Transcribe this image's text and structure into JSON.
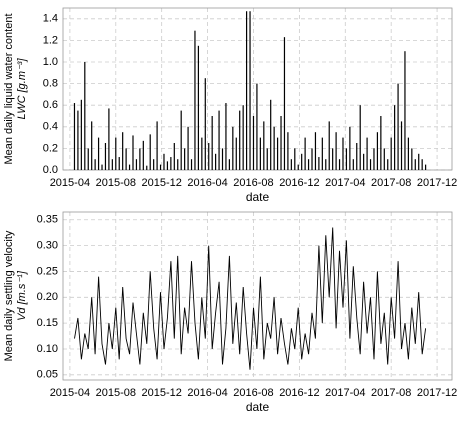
{
  "chart_data": [
    {
      "type": "bar",
      "xlabel": "date",
      "ylabel": [
        "Mean daily liquid water content",
        "LWC [g.m⁻³]"
      ],
      "color": "#000000",
      "grid": true,
      "x": [
        3.4,
        3.7,
        4.0,
        4.3,
        4.6,
        4.9,
        5.2,
        5.5,
        5.8,
        6.1,
        6.4,
        6.7,
        7.0,
        7.3,
        7.6,
        7.9,
        8.2,
        8.5,
        8.8,
        9.1,
        9.4,
        9.7,
        10.0,
        10.3,
        10.6,
        10.9,
        11.2,
        11.5,
        11.8,
        12.1,
        12.4,
        12.7,
        13.0,
        13.3,
        13.6,
        13.9,
        14.2,
        14.5,
        14.8,
        15.1,
        15.4,
        15.7,
        16.0,
        16.3,
        16.6,
        16.9,
        17.2,
        17.5,
        17.8,
        18.1,
        18.4,
        18.7,
        19.0,
        19.3,
        19.6,
        19.9,
        20.2,
        20.5,
        20.8,
        21.1,
        21.4,
        21.7,
        22.0,
        22.3,
        22.6,
        22.9,
        23.2,
        23.5,
        23.8,
        24.1,
        24.4,
        24.7,
        25.0,
        25.3,
        25.6,
        25.9,
        26.2,
        26.5,
        26.8,
        27.1,
        27.4,
        27.7,
        28.0,
        28.3,
        28.6,
        28.9,
        29.2,
        29.5,
        29.8,
        30.1,
        30.4,
        30.7,
        31.0,
        31.3,
        31.6,
        31.9,
        32.2,
        32.5,
        32.8,
        33.1,
        33.4,
        33.7,
        34.0
      ],
      "values": [
        0.62,
        0.55,
        0.65,
        1.0,
        0.2,
        0.45,
        0.1,
        0.3,
        0.05,
        0.25,
        0.57,
        0.1,
        0.3,
        0.12,
        0.35,
        0.2,
        0.05,
        0.32,
        0.1,
        0.2,
        0.27,
        0.04,
        0.33,
        0.1,
        0.45,
        0.05,
        0.15,
        0.08,
        0.12,
        0.25,
        0.1,
        0.55,
        0.2,
        0.4,
        0.1,
        1.29,
        1.15,
        0.3,
        0.85,
        0.25,
        0.5,
        0.15,
        0.55,
        0.2,
        0.62,
        0.1,
        0.4,
        0.3,
        0.55,
        0.6,
        1.47,
        1.47,
        0.5,
        0.8,
        0.3,
        0.45,
        0.2,
        0.65,
        0.4,
        0.3,
        0.5,
        1.23,
        0.35,
        0.1,
        0.2,
        0.05,
        0.15,
        0.3,
        0.1,
        0.2,
        0.35,
        0.12,
        0.3,
        0.1,
        0.45,
        0.2,
        0.35,
        0.1,
        0.3,
        0.2,
        0.4,
        0.1,
        0.25,
        0.6,
        0.15,
        0.3,
        0.1,
        0.2,
        0.35,
        0.5,
        0.2,
        0.1,
        0.3,
        0.6,
        0.8,
        0.45,
        1.1,
        0.3,
        0.2,
        0.1,
        0.15,
        0.1,
        0.05
      ],
      "xlim": [
        2.4,
        36.3
      ],
      "xticks": [
        {
          "value": 3,
          "label": "2015-04"
        },
        {
          "value": 7,
          "label": "2015-08"
        },
        {
          "value": 11,
          "label": "2015-12"
        },
        {
          "value": 15,
          "label": "2016-04"
        },
        {
          "value": 19,
          "label": "2016-08"
        },
        {
          "value": 23,
          "label": "2016-12"
        },
        {
          "value": 27,
          "label": "2017-04"
        },
        {
          "value": 31,
          "label": "2017-08"
        },
        {
          "value": 35,
          "label": "2017-12"
        }
      ],
      "ylim": [
        0,
        1.5
      ],
      "yticks": [
        {
          "value": 0,
          "label": "0.0"
        },
        0.2,
        0.4,
        0.6,
        0.8,
        {
          "value": 1,
          "label": "1.0"
        },
        1.2,
        1.4
      ]
    },
    {
      "type": "line",
      "xlabel": "date",
      "ylabel": [
        "Mean daily settling velocity",
        "Vd [m.s⁻¹]"
      ],
      "color": "#000000",
      "grid": true,
      "x": [
        3.4,
        3.7,
        4.0,
        4.3,
        4.6,
        4.9,
        5.2,
        5.5,
        5.8,
        6.1,
        6.4,
        6.7,
        7.0,
        7.3,
        7.6,
        7.9,
        8.2,
        8.5,
        8.8,
        9.1,
        9.4,
        9.7,
        10.0,
        10.3,
        10.6,
        10.9,
        11.2,
        11.5,
        11.8,
        12.1,
        12.4,
        12.7,
        13.0,
        13.3,
        13.6,
        13.9,
        14.2,
        14.5,
        14.8,
        15.1,
        15.4,
        15.7,
        16.0,
        16.3,
        16.6,
        16.9,
        17.2,
        17.5,
        17.8,
        18.1,
        18.4,
        18.7,
        19.0,
        19.3,
        19.6,
        19.9,
        20.2,
        20.5,
        20.8,
        21.1,
        21.4,
        21.7,
        22.0,
        22.3,
        22.6,
        22.9,
        23.2,
        23.5,
        23.8,
        24.1,
        24.4,
        24.7,
        25.0,
        25.3,
        25.6,
        25.9,
        26.2,
        26.5,
        26.8,
        27.1,
        27.4,
        27.7,
        28.0,
        28.3,
        28.6,
        28.9,
        29.2,
        29.5,
        29.8,
        30.1,
        30.4,
        30.7,
        31.0,
        31.3,
        31.6,
        31.9,
        32.2,
        32.5,
        32.8,
        33.1,
        33.4,
        33.7,
        34.0
      ],
      "values": [
        0.12,
        0.16,
        0.08,
        0.13,
        0.1,
        0.2,
        0.09,
        0.24,
        0.11,
        0.07,
        0.15,
        0.1,
        0.18,
        0.08,
        0.22,
        0.12,
        0.09,
        0.19,
        0.13,
        0.07,
        0.17,
        0.11,
        0.25,
        0.14,
        0.08,
        0.21,
        0.1,
        0.16,
        0.27,
        0.12,
        0.28,
        0.09,
        0.18,
        0.13,
        0.27,
        0.15,
        0.08,
        0.2,
        0.12,
        0.3,
        0.1,
        0.17,
        0.23,
        0.07,
        0.14,
        0.28,
        0.11,
        0.19,
        0.09,
        0.22,
        0.13,
        0.06,
        0.18,
        0.1,
        0.24,
        0.08,
        0.15,
        0.12,
        0.2,
        0.09,
        0.16,
        0.11,
        0.07,
        0.14,
        0.1,
        0.18,
        0.08,
        0.13,
        0.09,
        0.17,
        0.12,
        0.3,
        0.15,
        0.32,
        0.2,
        0.335,
        0.14,
        0.29,
        0.18,
        0.31,
        0.12,
        0.26,
        0.16,
        0.09,
        0.23,
        0.13,
        0.2,
        0.08,
        0.25,
        0.11,
        0.17,
        0.07,
        0.2,
        0.12,
        0.27,
        0.1,
        0.15,
        0.08,
        0.18,
        0.11,
        0.21,
        0.09,
        0.14
      ],
      "xlim": [
        2.4,
        36.3
      ],
      "xticks": [
        {
          "value": 3,
          "label": "2015-04"
        },
        {
          "value": 7,
          "label": "2015-08"
        },
        {
          "value": 11,
          "label": "2015-12"
        },
        {
          "value": 15,
          "label": "2016-04"
        },
        {
          "value": 19,
          "label": "2016-08"
        },
        {
          "value": 23,
          "label": "2016-12"
        },
        {
          "value": 27,
          "label": "2017-04"
        },
        {
          "value": 31,
          "label": "2017-08"
        },
        {
          "value": 35,
          "label": "2017-12"
        }
      ],
      "ylim": [
        0.04,
        0.365
      ],
      "yticks": [
        0.05,
        {
          "value": 0.1,
          "label": "0.10"
        },
        0.15,
        {
          "value": 0.2,
          "label": "0.20"
        },
        0.25,
        {
          "value": 0.3,
          "label": "0.30"
        },
        0.35
      ]
    }
  ]
}
